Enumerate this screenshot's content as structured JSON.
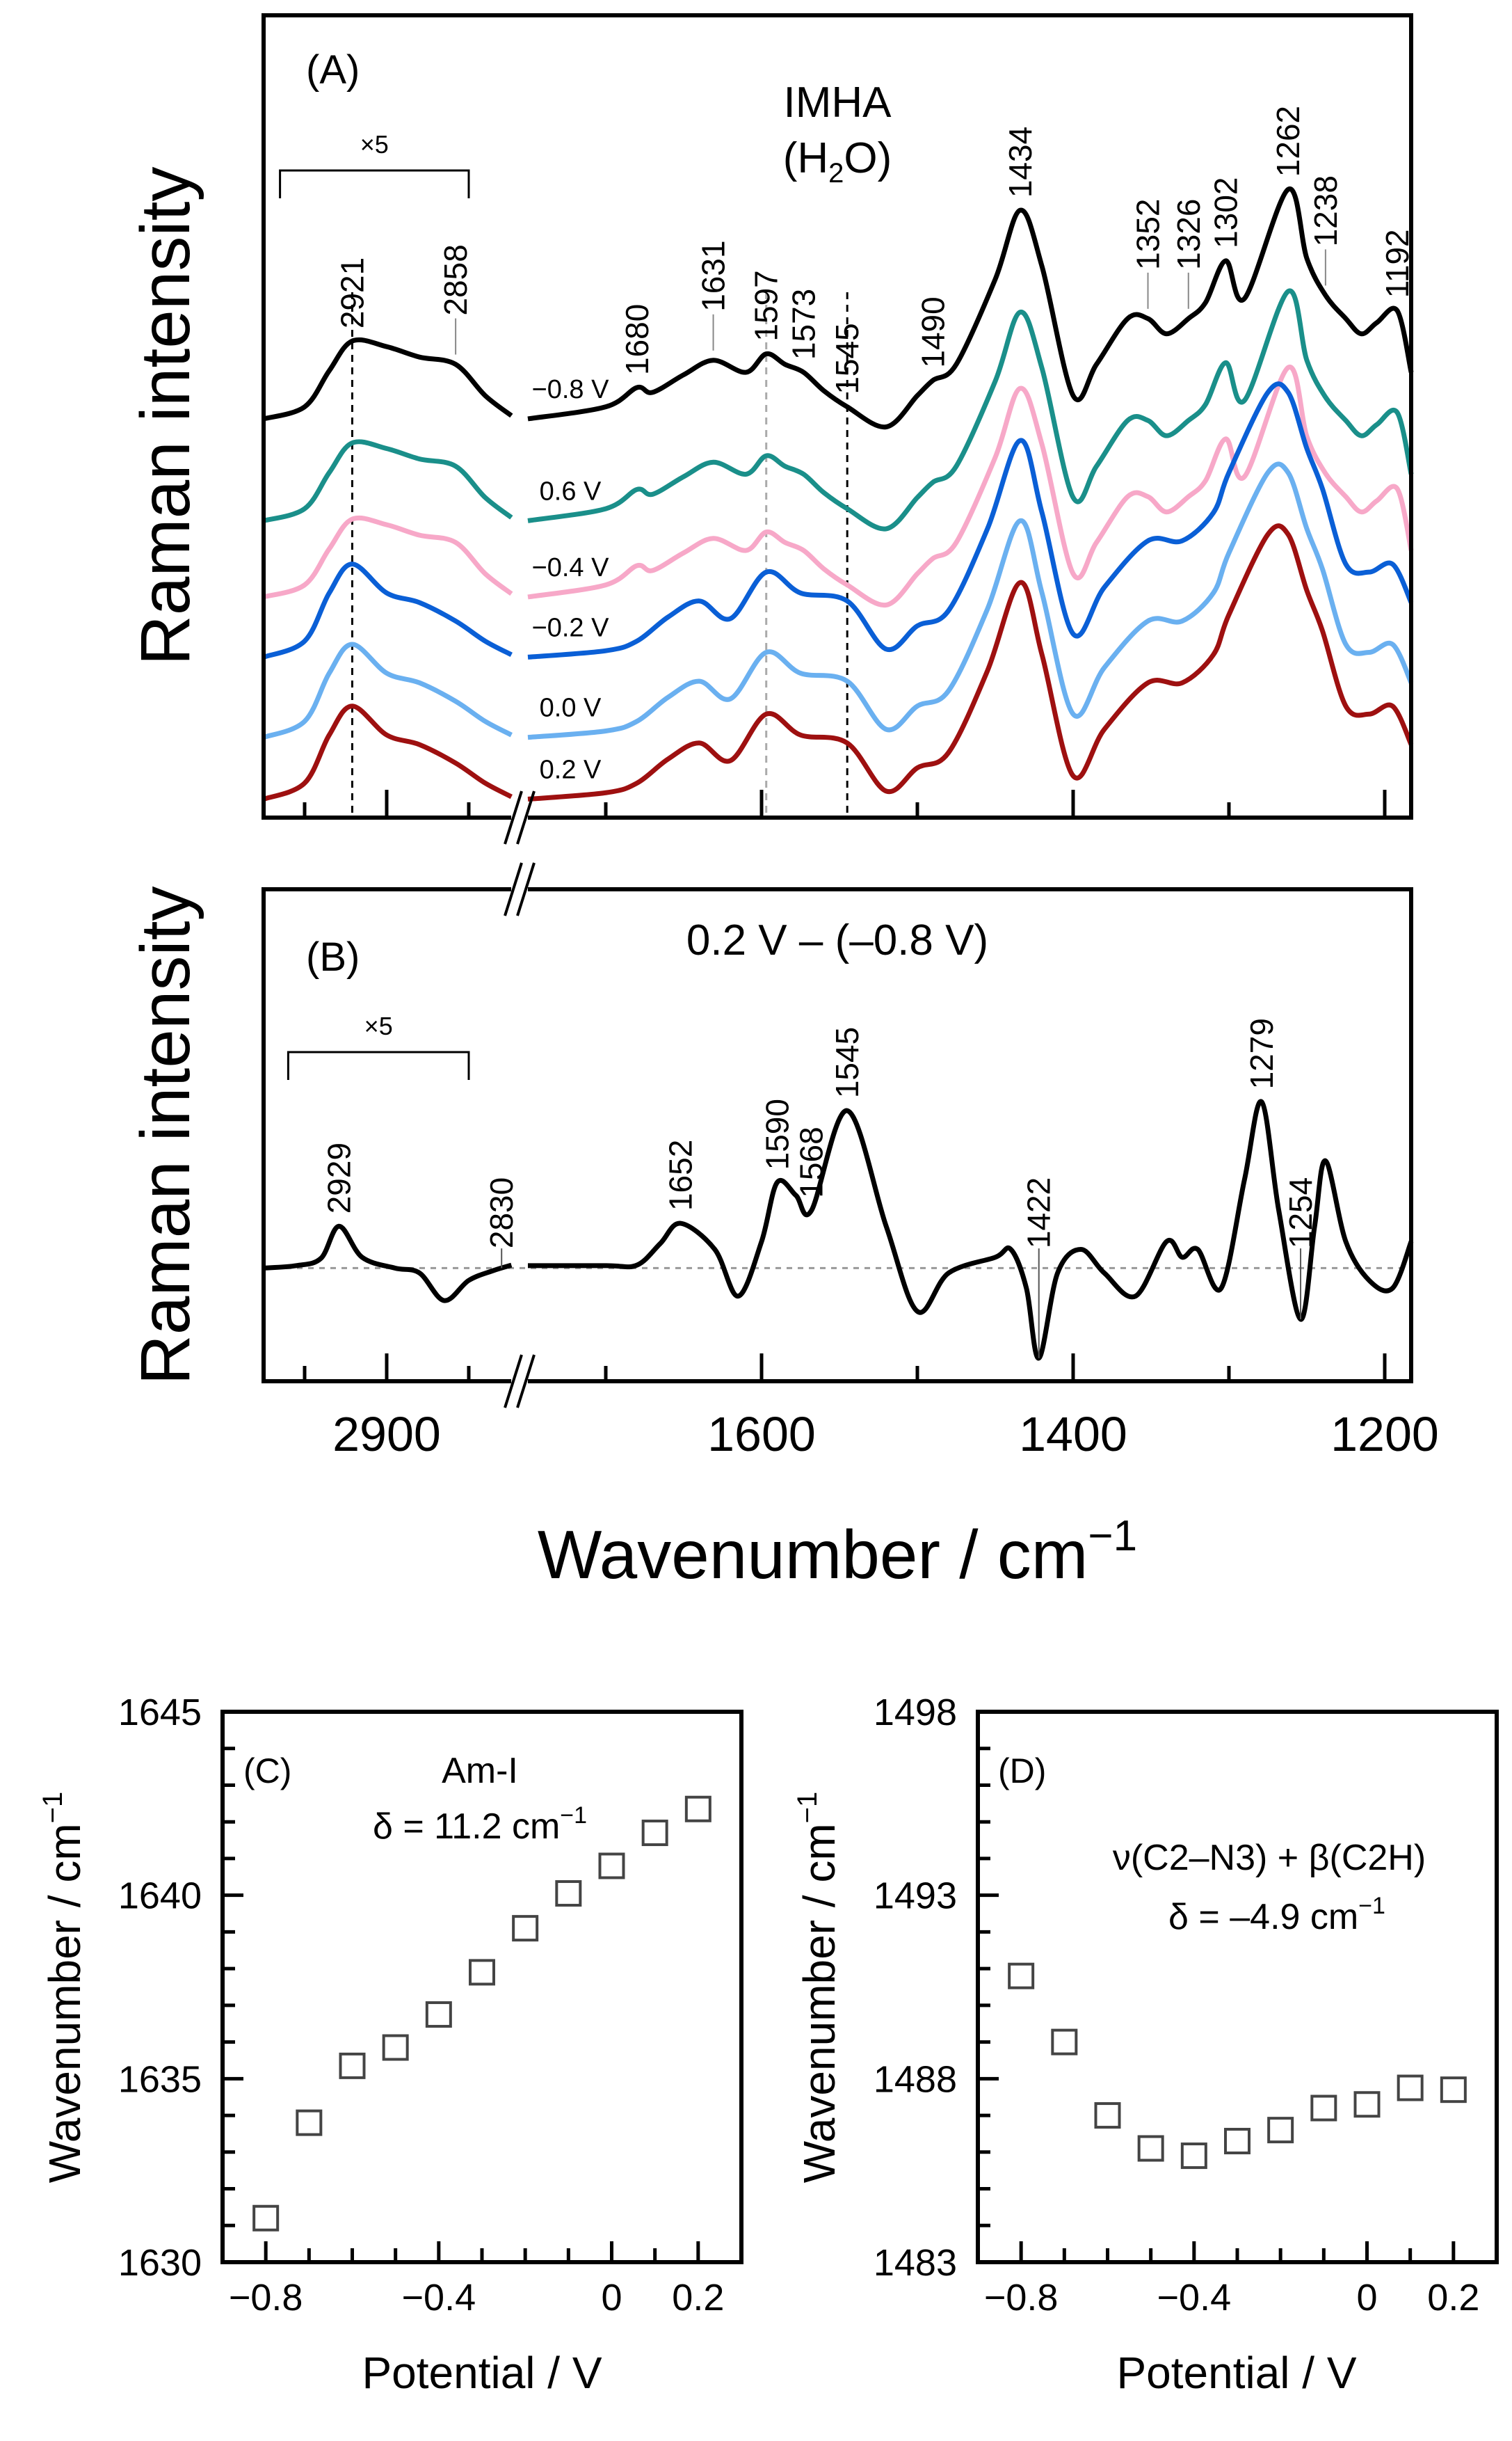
{
  "chart_data": [
    {
      "panel": "(A)",
      "type": "line",
      "title_lines": [
        "IMHA",
        "(H",
        "2",
        "O)"
      ],
      "ylabel": "Raman intensity",
      "xlabel": "Wavenumber / cm",
      "xlabel_sup": "−1",
      "x_axis": "reversed, broken between 2824 and 1750",
      "xlim_left_segment": [
        2975,
        2824
      ],
      "xlim_right_segment": [
        1750,
        1183
      ],
      "ylim": [
        0,
        100
      ],
      "x_major_ticks": [
        2900,
        1600,
        1400,
        1200
      ],
      "x_minor_ticks_left": [
        2950,
        2900,
        2850
      ],
      "x_minor_ticks_right": [
        1700,
        1600,
        1500,
        1400,
        1300,
        1200
      ],
      "scale_note": "×5",
      "scale_note_range": [
        2965,
        2850
      ],
      "profiles": {
        "neg": [
          [
            2975,
            0
          ],
          [
            2950,
            1.5
          ],
          [
            2935,
            6
          ],
          [
            2921,
            9.7
          ],
          [
            2900,
            9
          ],
          [
            2880,
            7.7
          ],
          [
            2858,
            6.8
          ],
          [
            2840,
            2.9
          ],
          [
            2824,
            0.4
          ],
          [
            1750,
            0
          ],
          [
            1700,
            1.5
          ],
          [
            1680,
            3.9
          ],
          [
            1670,
            3.3
          ],
          [
            1650,
            5.5
          ],
          [
            1631,
            7.3
          ],
          [
            1610,
            5.8
          ],
          [
            1597,
            8.1
          ],
          [
            1585,
            6.8
          ],
          [
            1573,
            5.8
          ],
          [
            1560,
            3.5
          ],
          [
            1545,
            1.5
          ],
          [
            1520,
            -1
          ],
          [
            1500,
            2.9
          ],
          [
            1490,
            4.8
          ],
          [
            1475,
            6.8
          ],
          [
            1450,
            17.4
          ],
          [
            1434,
            26
          ],
          [
            1420,
            19
          ],
          [
            1400,
            2.9
          ],
          [
            1385,
            6.8
          ],
          [
            1365,
            12.5
          ],
          [
            1352,
            12.5
          ],
          [
            1340,
            10.6
          ],
          [
            1326,
            12.5
          ],
          [
            1315,
            14.5
          ],
          [
            1302,
            19.7
          ],
          [
            1290,
            15
          ],
          [
            1262,
            28.6
          ],
          [
            1250,
            20
          ],
          [
            1238,
            15.4
          ],
          [
            1225,
            12.5
          ],
          [
            1215,
            10.6
          ],
          [
            1205,
            12
          ],
          [
            1192,
            13.5
          ],
          [
            1183,
            5.8
          ]
        ],
        "pos": [
          [
            2975,
            0
          ],
          [
            2950,
            2
          ],
          [
            2935,
            8
          ],
          [
            2921,
            11.6
          ],
          [
            2900,
            8
          ],
          [
            2880,
            6.8
          ],
          [
            2858,
            4.5
          ],
          [
            2840,
            2
          ],
          [
            2824,
            0.3
          ],
          [
            1750,
            0
          ],
          [
            1700,
            0.8
          ],
          [
            1680,
            2
          ],
          [
            1660,
            5
          ],
          [
            1640,
            7
          ],
          [
            1620,
            4.8
          ],
          [
            1597,
            10.6
          ],
          [
            1575,
            8
          ],
          [
            1545,
            7
          ],
          [
            1520,
            1
          ],
          [
            1500,
            3.9
          ],
          [
            1480,
            5.8
          ],
          [
            1455,
            16
          ],
          [
            1434,
            27
          ],
          [
            1420,
            18
          ],
          [
            1400,
            2.9
          ],
          [
            1380,
            8.7
          ],
          [
            1352,
            14.5
          ],
          [
            1330,
            14.5
          ],
          [
            1310,
            18
          ],
          [
            1300,
            23
          ],
          [
            1275,
            33
          ],
          [
            1262,
            33
          ],
          [
            1250,
            26
          ],
          [
            1240,
            21
          ],
          [
            1225,
            11.6
          ],
          [
            1210,
            10.6
          ],
          [
            1195,
            11.6
          ],
          [
            1183,
            6.8
          ]
        ]
      },
      "series": [
        {
          "name": "−0.8 V",
          "color": "#000000",
          "offset": 49.7,
          "profile": "neg"
        },
        {
          "name": "0.6 V",
          "color": "#1a8f8a",
          "offset": 37,
          "profile": "neg"
        },
        {
          "name": "−0.4 V",
          "color": "#f7a8c8",
          "offset": 27.5,
          "profile": "neg"
        },
        {
          "name": "−0.2 V",
          "color": "#0a5fd6",
          "offset": 20,
          "profile": "pos"
        },
        {
          "name": "0.0 V",
          "color": "#6ab0f0",
          "offset": 10,
          "profile": "pos"
        },
        {
          "name": "0.2 V",
          "color": "#9e1010",
          "offset": 2.3,
          "profile": "pos"
        }
      ],
      "reference_lines": [
        {
          "x": 2921,
          "color": "#000000"
        },
        {
          "x": 1597,
          "color": "#aaaaaa"
        },
        {
          "x": 1545,
          "color": "#000000"
        }
      ],
      "peak_labels": [
        {
          "text": "2921",
          "x": 2921
        },
        {
          "text": "2858",
          "x": 2858,
          "leader": true
        },
        {
          "text": "1680",
          "x": 1680
        },
        {
          "text": "1631",
          "x": 1631,
          "leader": true
        },
        {
          "text": "1597",
          "x": 1597
        },
        {
          "text": "1573",
          "x": 1573
        },
        {
          "text": "1545",
          "x": 1545
        },
        {
          "text": "1490",
          "x": 1490
        },
        {
          "text": "1434",
          "x": 1434
        },
        {
          "text": "1352",
          "x": 1352,
          "leader": true
        },
        {
          "text": "1326",
          "x": 1326,
          "leader": true
        },
        {
          "text": "1302",
          "x": 1302
        },
        {
          "text": "1262",
          "x": 1262
        },
        {
          "text": "1238",
          "x": 1238,
          "leader": true
        },
        {
          "text": "1192",
          "x": 1192
        }
      ]
    },
    {
      "panel": "(B)",
      "type": "line",
      "title": "0.2 V – (–0.8 V)",
      "ylabel": "Raman intensity",
      "ylim": [
        -23,
        77
      ],
      "baseline": 0,
      "scale_note": "×5",
      "scale_note_range": [
        2960,
        2850
      ],
      "x_tick_labels": [
        "2900",
        "1600",
        "1400",
        "1200"
      ],
      "series": [
        {
          "color": "#000000",
          "points": [
            [
              2975,
              0
            ],
            [
              2955,
              0.5
            ],
            [
              2940,
              2
            ],
            [
              2929,
              8.5
            ],
            [
              2915,
              2.2
            ],
            [
              2895,
              0
            ],
            [
              2880,
              -1
            ],
            [
              2865,
              -6.6
            ],
            [
              2850,
              -2.5
            ],
            [
              2835,
              -0.5
            ],
            [
              2824,
              0.6
            ],
            [
              1750,
              0.5
            ],
            [
              1700,
              0.5
            ],
            [
              1680,
              0.6
            ],
            [
              1665,
              5
            ],
            [
              1652,
              9.1
            ],
            [
              1630,
              3.8
            ],
            [
              1615,
              -5.7
            ],
            [
              1600,
              5.4
            ],
            [
              1590,
              17.4
            ],
            [
              1578,
              14.8
            ],
            [
              1568,
              11.7
            ],
            [
              1545,
              32
            ],
            [
              1520,
              8.5
            ],
            [
              1500,
              -8.8
            ],
            [
              1480,
              -1
            ],
            [
              1450,
              2.2
            ],
            [
              1440,
              3.8
            ],
            [
              1430,
              -4.1
            ],
            [
              1422,
              -18.3
            ],
            [
              1410,
              -1
            ],
            [
              1395,
              3.8
            ],
            [
              1380,
              -1
            ],
            [
              1360,
              -5.7
            ],
            [
              1340,
              5.4
            ],
            [
              1330,
              2.2
            ],
            [
              1320,
              3.8
            ],
            [
              1305,
              -4.1
            ],
            [
              1290,
              18
            ],
            [
              1279,
              33.8
            ],
            [
              1268,
              11.7
            ],
            [
              1254,
              -10.4
            ],
            [
              1245,
              8.5
            ],
            [
              1238,
              21.8
            ],
            [
              1225,
              5.4
            ],
            [
              1210,
              -2.5
            ],
            [
              1195,
              -4.1
            ],
            [
              1183,
              5.4
            ]
          ]
        }
      ],
      "peak_labels": [
        {
          "text": "2929",
          "x": 2929
        },
        {
          "text": "2830",
          "x": 2830,
          "leader": true
        },
        {
          "text": "1652",
          "x": 1652
        },
        {
          "text": "1590",
          "x": 1590
        },
        {
          "text": "1568",
          "x": 1568
        },
        {
          "text": "1545",
          "x": 1545
        },
        {
          "text": "1422",
          "x": 1422,
          "leader": true
        },
        {
          "text": "1279",
          "x": 1279
        },
        {
          "text": "1254",
          "x": 1254,
          "leader": true
        }
      ]
    },
    {
      "panel": "(C)",
      "type": "scatter",
      "annotation": "Am-I",
      "delta_text": "δ = 11.2 cm",
      "delta_sup": "−1",
      "xlabel": "Potential / V",
      "ylabel": "Wavenumber / cm",
      "ylabel_sup": "−1",
      "xlim": [
        -0.9,
        0.3
      ],
      "ylim": [
        1630,
        1645
      ],
      "x_ticks": [
        {
          "v": -0.8,
          "label": "−0.8"
        },
        {
          "v": -0.4,
          "label": "−0.4"
        },
        {
          "v": 0,
          "label": "0"
        },
        {
          "v": 0.2,
          "label": "0.2"
        }
      ],
      "y_ticks": [
        {
          "v": 1630,
          "label": "1630"
        },
        {
          "v": 1635,
          "label": "1635"
        },
        {
          "v": 1640,
          "label": "1640"
        },
        {
          "v": 1645,
          "label": "1645"
        }
      ],
      "marker": "open-square",
      "marker_color": "#444444",
      "x": [
        -0.8,
        -0.7,
        -0.6,
        -0.5,
        -0.4,
        -0.3,
        -0.2,
        -0.1,
        0.0,
        0.1,
        0.2
      ],
      "y": [
        1631.2,
        1633.8,
        1635.35,
        1635.85,
        1636.75,
        1637.9,
        1639.1,
        1640.05,
        1640.8,
        1641.7,
        1642.35
      ]
    },
    {
      "panel": "(D)",
      "type": "scatter",
      "annotation": "ν(C2–N3) + β(C2H)",
      "delta_text": "δ = –4.9 cm",
      "delta_sup": "−1",
      "xlabel": "Potential / V",
      "ylabel": "Wavenumber / cm",
      "ylabel_sup": "−1",
      "xlim": [
        -0.9,
        0.3
      ],
      "ylim": [
        1483,
        1498
      ],
      "x_ticks": [
        {
          "v": -0.8,
          "label": "−0.8"
        },
        {
          "v": -0.4,
          "label": "−0.4"
        },
        {
          "v": 0,
          "label": "0"
        },
        {
          "v": 0.2,
          "label": "0.2"
        }
      ],
      "y_ticks": [
        {
          "v": 1483,
          "label": "1483"
        },
        {
          "v": 1488,
          "label": "1488"
        },
        {
          "v": 1493,
          "label": "1493"
        },
        {
          "v": 1498,
          "label": "1498"
        }
      ],
      "marker": "open-square",
      "marker_color": "#444444",
      "x": [
        -0.8,
        -0.7,
        -0.6,
        -0.5,
        -0.4,
        -0.3,
        -0.2,
        -0.1,
        0.0,
        0.1,
        0.2
      ],
      "y": [
        1490.8,
        1489.0,
        1487.0,
        1486.1,
        1485.9,
        1486.3,
        1486.6,
        1487.2,
        1487.3,
        1487.75,
        1487.7
      ]
    }
  ]
}
